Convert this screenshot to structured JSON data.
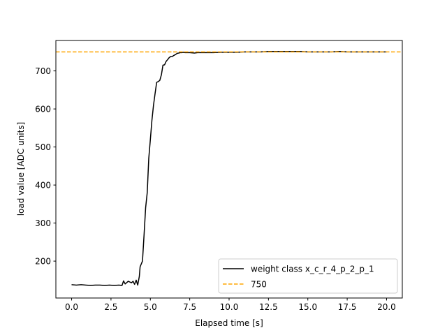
{
  "chart_data": {
    "type": "line",
    "title": "",
    "xlabel": "Elapsed time [s]",
    "ylabel": "load value [ADC units]",
    "xlim": [
      -1.0,
      21.0
    ],
    "ylim": [
      103,
      780
    ],
    "xticks": [
      0.0,
      2.5,
      5.0,
      7.5,
      10.0,
      12.5,
      15.0,
      17.5,
      20.0
    ],
    "xtick_labels": [
      "0.0",
      "2.5",
      "5.0",
      "7.5",
      "10.0",
      "12.5",
      "15.0",
      "17.5",
      "20.0"
    ],
    "yticks": [
      200,
      300,
      400,
      500,
      600,
      700
    ],
    "ytick_labels": [
      "200",
      "300",
      "400",
      "500",
      "600",
      "700"
    ],
    "grid": false,
    "legend_position": "bottom-right",
    "series": [
      {
        "name": "weight class x_c_r_4_p_2_p_1",
        "color": "#000000",
        "style": "solid",
        "x": [
          0.0,
          0.3,
          0.6,
          0.9,
          1.2,
          1.5,
          1.8,
          2.1,
          2.4,
          2.7,
          3.0,
          3.2,
          3.3,
          3.4,
          3.6,
          3.8,
          3.9,
          4.0,
          4.1,
          4.2,
          4.3,
          4.35,
          4.4,
          4.5,
          4.6,
          4.7,
          4.8,
          4.9,
          5.0,
          5.1,
          5.2,
          5.3,
          5.4,
          5.5,
          5.6,
          5.7,
          5.8,
          5.9,
          6.0,
          6.1,
          6.2,
          6.3,
          6.4,
          6.5,
          6.6,
          6.7,
          6.8,
          6.9,
          7.0,
          7.1,
          7.2,
          7.3,
          7.5,
          7.8,
          8.0,
          8.5,
          9.0,
          9.5,
          10.0,
          10.5,
          11.0,
          11.5,
          12.0,
          12.5,
          13.0,
          13.5,
          14.0,
          14.5,
          15.0,
          15.5,
          16.0,
          16.5,
          17.0,
          17.5,
          18.0,
          18.5,
          19.0,
          19.5,
          20.0
        ],
        "values": [
          138,
          137,
          138,
          137,
          136,
          137,
          137,
          136,
          137,
          136,
          137,
          136,
          148,
          140,
          147,
          143,
          147,
          139,
          150,
          137,
          160,
          185,
          190,
          200,
          270,
          340,
          380,
          470,
          520,
          570,
          610,
          640,
          670,
          672,
          675,
          690,
          715,
          716,
          725,
          730,
          735,
          738,
          738,
          741,
          743,
          746,
          747,
          748,
          748,
          749,
          748,
          748,
          748,
          747,
          748,
          748,
          748,
          749,
          749,
          749,
          750,
          750,
          750,
          751,
          751,
          751,
          751,
          751,
          750,
          750,
          750,
          750,
          751,
          750,
          750,
          750,
          750,
          750,
          750
        ]
      },
      {
        "name": "750",
        "color": "#ffa500",
        "style": "dashed",
        "x": [
          -1.0,
          21.0
        ],
        "values": [
          750,
          750
        ]
      }
    ]
  }
}
